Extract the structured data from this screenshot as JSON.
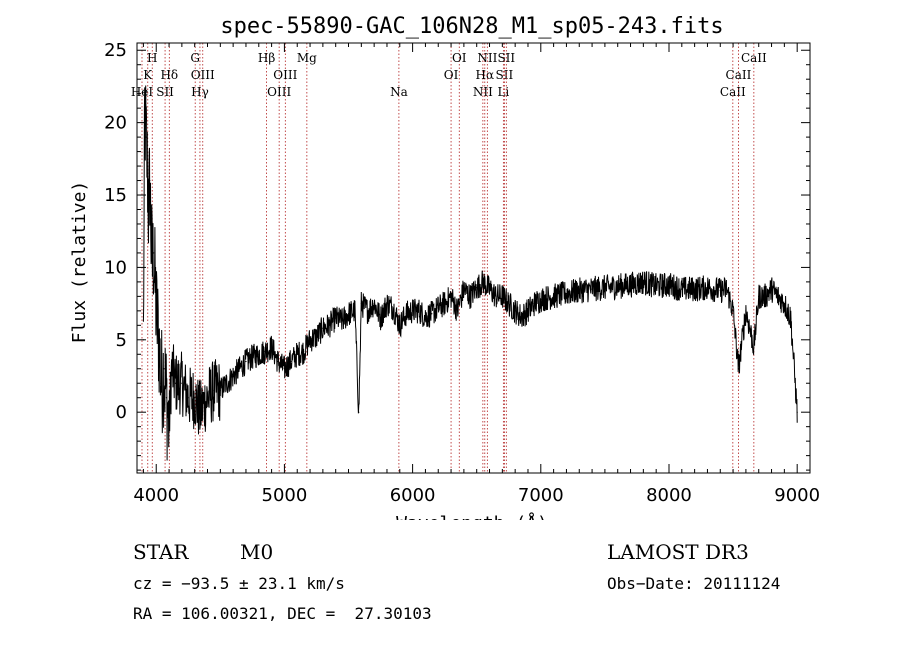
{
  "chart_data": {
    "type": "line",
    "title": "spec-55890-GAC_106N28_M1_sp05-243.fits",
    "xlabel": "Wavelength (Å)",
    "ylabel": "Flux (relative)",
    "xlim": [
      3850,
      9100
    ],
    "ylim": [
      -4.2,
      25.5
    ],
    "xticks": [
      4000,
      5000,
      6000,
      7000,
      8000,
      9000
    ],
    "yticks": [
      0,
      5,
      10,
      15,
      20,
      25
    ],
    "xtick_labels": [
      "4000",
      "5000",
      "6000",
      "7000",
      "8000",
      "9000"
    ],
    "ytick_labels": [
      "0",
      "5",
      "10",
      "15",
      "20",
      "25"
    ],
    "grid": false,
    "series": [
      {
        "name": "flux",
        "x": [
          3900,
          3910,
          3920,
          3930,
          3940,
          3950,
          3960,
          3970,
          3980,
          3990,
          4000,
          4020,
          4040,
          4060,
          4080,
          4100,
          4120,
          4150,
          4200,
          4250,
          4300,
          4340,
          4400,
          4450,
          4500,
          4550,
          4600,
          4650,
          4700,
          4750,
          4800,
          4850,
          4900,
          4950,
          5000,
          5050,
          5100,
          5150,
          5200,
          5250,
          5300,
          5350,
          5400,
          5450,
          5500,
          5550,
          5580,
          5600,
          5650,
          5700,
          5750,
          5800,
          5850,
          5900,
          5950,
          6000,
          6050,
          6100,
          6150,
          6200,
          6250,
          6300,
          6350,
          6400,
          6450,
          6500,
          6550,
          6600,
          6650,
          6700,
          6750,
          6800,
          6850,
          6900,
          6950,
          7000,
          7100,
          7200,
          7300,
          7400,
          7500,
          7600,
          7700,
          7800,
          7900,
          8000,
          8100,
          8200,
          8300,
          8400,
          8450,
          8500,
          8542,
          8600,
          8662,
          8700,
          8750,
          8800,
          8850,
          8900,
          8950,
          9000
        ],
        "y": [
          5,
          21,
          19,
          17,
          14,
          16,
          12,
          10,
          11,
          9,
          7,
          5,
          2,
          3,
          1,
          -1,
          3,
          2,
          2,
          1,
          1,
          0,
          1,
          1.5,
          1.5,
          2,
          2.5,
          3,
          3.5,
          3.8,
          4,
          4.2,
          4.5,
          3.5,
          3,
          3.5,
          4,
          4.2,
          5,
          5.2,
          5.8,
          6,
          6.5,
          6.3,
          6.8,
          7,
          0,
          7.5,
          7,
          7.5,
          6.5,
          7.5,
          7.2,
          6,
          6.8,
          7,
          7,
          6.6,
          6.8,
          7.2,
          7.5,
          8,
          7,
          8.5,
          8,
          8.6,
          9,
          8.5,
          8,
          8,
          7.5,
          7,
          6.6,
          7,
          7.5,
          7.8,
          8,
          8.2,
          8.4,
          8.5,
          8.6,
          8.7,
          8.8,
          9,
          8.7,
          8.8,
          8.5,
          8.5,
          8.6,
          8.4,
          8.5,
          7,
          3,
          7,
          4.5,
          8,
          8,
          8.5,
          8,
          7.5,
          6.5,
          0
        ]
      }
    ],
    "lines": [
      {
        "name": "HeI",
        "x": 3889,
        "label": "HeI",
        "row": 3
      },
      {
        "name": "K",
        "x": 3934,
        "label": "K",
        "row": 2
      },
      {
        "name": "H",
        "x": 3969,
        "label": "H",
        "row": 1
      },
      {
        "name": "SII",
        "x": 4069,
        "label": "SII",
        "row": 3
      },
      {
        "name": "Hδ",
        "x": 4102,
        "label": "Hδ",
        "row": 2
      },
      {
        "name": "G",
        "x": 4304,
        "label": "G",
        "row": 1
      },
      {
        "name": "Hγ",
        "x": 4341,
        "label": "Hγ",
        "row": 3
      },
      {
        "name": "OIII",
        "x": 4363,
        "label": "OIII",
        "row": 2
      },
      {
        "name": "Hβ",
        "x": 4861,
        "label": "Hβ",
        "row": 1
      },
      {
        "name": "OIII",
        "x": 4959,
        "label": "OIII",
        "row": 3
      },
      {
        "name": "OIII",
        "x": 5007,
        "label": "OIII",
        "row": 2
      },
      {
        "name": "Mg",
        "x": 5175,
        "label": "Mg",
        "row": 1
      },
      {
        "name": "Na",
        "x": 5893,
        "label": "Na",
        "row": 3
      },
      {
        "name": "OI",
        "x": 6300,
        "label": "OI",
        "row": 2
      },
      {
        "name": "OI",
        "x": 6364,
        "label": "OI",
        "row": 1
      },
      {
        "name": "NII",
        "x": 6548,
        "label": "NII",
        "row": 3
      },
      {
        "name": "Hα",
        "x": 6563,
        "label": "Hα",
        "row": 2
      },
      {
        "name": "NII",
        "x": 6583,
        "label": "NII",
        "row": 1
      },
      {
        "name": "Li",
        "x": 6708,
        "label": "Li",
        "row": 3
      },
      {
        "name": "SII",
        "x": 6716,
        "label": "SII",
        "row": 2
      },
      {
        "name": "SII",
        "x": 6731,
        "label": "SII",
        "row": 1
      },
      {
        "name": "CaII",
        "x": 8498,
        "label": "CaII",
        "row": 3
      },
      {
        "name": "CaII",
        "x": 8542,
        "label": "CaII",
        "row": 2
      },
      {
        "name": "CaII",
        "x": 8662,
        "label": "CaII",
        "row": 1
      }
    ],
    "colors": {
      "spectrum": "#000000",
      "lines": "#b22222",
      "axes": "#000000"
    }
  },
  "info": {
    "class_label": "STAR",
    "subclass": "M0",
    "survey": "LAMOST DR3",
    "cz": "cz = −93.5 ± 23.1 km/s",
    "obs_date": "Obs−Date: 20111124",
    "coords": "RA = 106.00321, DEC =  27.30103"
  }
}
